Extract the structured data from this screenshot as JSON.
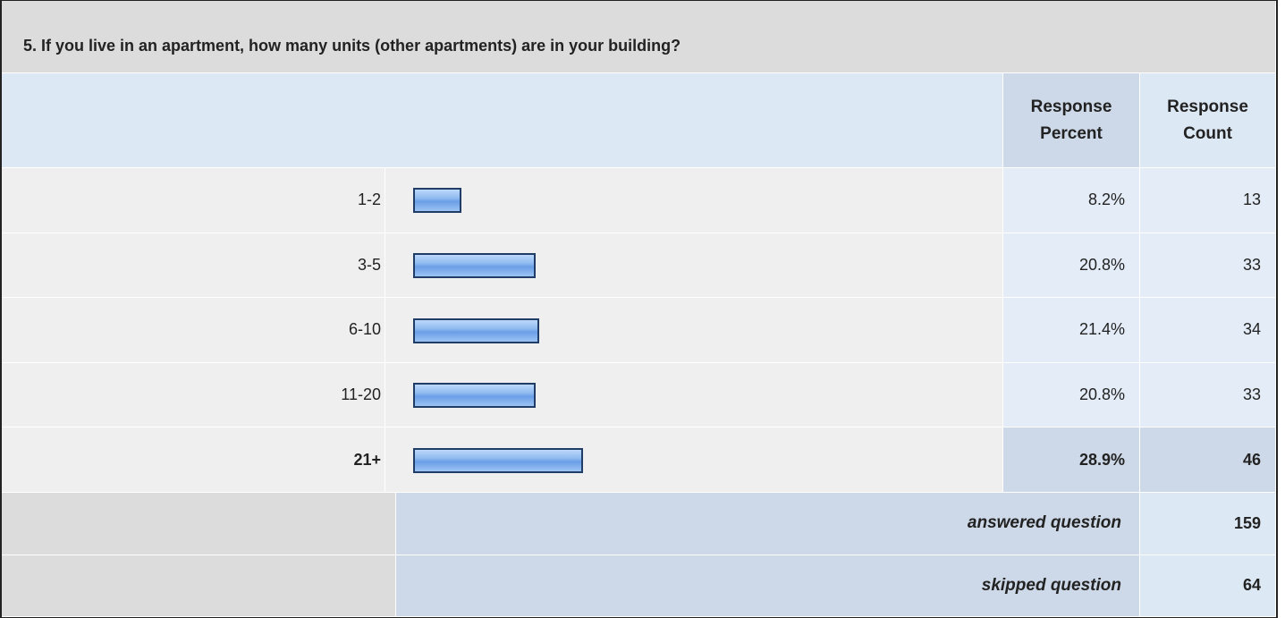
{
  "title": "5. If you live in an apartment, how many units (other apartments) are in your building?",
  "columns": [
    "Response Percent",
    "Response Count"
  ],
  "rows": [
    {
      "label": "1-2",
      "percent": 8.2,
      "percent_label": "8.2%",
      "count": 13
    },
    {
      "label": "3-5",
      "percent": 20.8,
      "percent_label": "20.8%",
      "count": 33
    },
    {
      "label": "6-10",
      "percent": 21.4,
      "percent_label": "21.4%",
      "count": 34
    },
    {
      "label": "11-20",
      "percent": 20.8,
      "percent_label": "20.8%",
      "count": 33
    },
    {
      "label": "21+",
      "percent": 28.9,
      "percent_label": "28.9%",
      "count": 46,
      "highlight": true
    }
  ],
  "footer": [
    {
      "label": "answered question",
      "count": 159
    },
    {
      "label": "skipped question",
      "count": 64
    }
  ]
}
